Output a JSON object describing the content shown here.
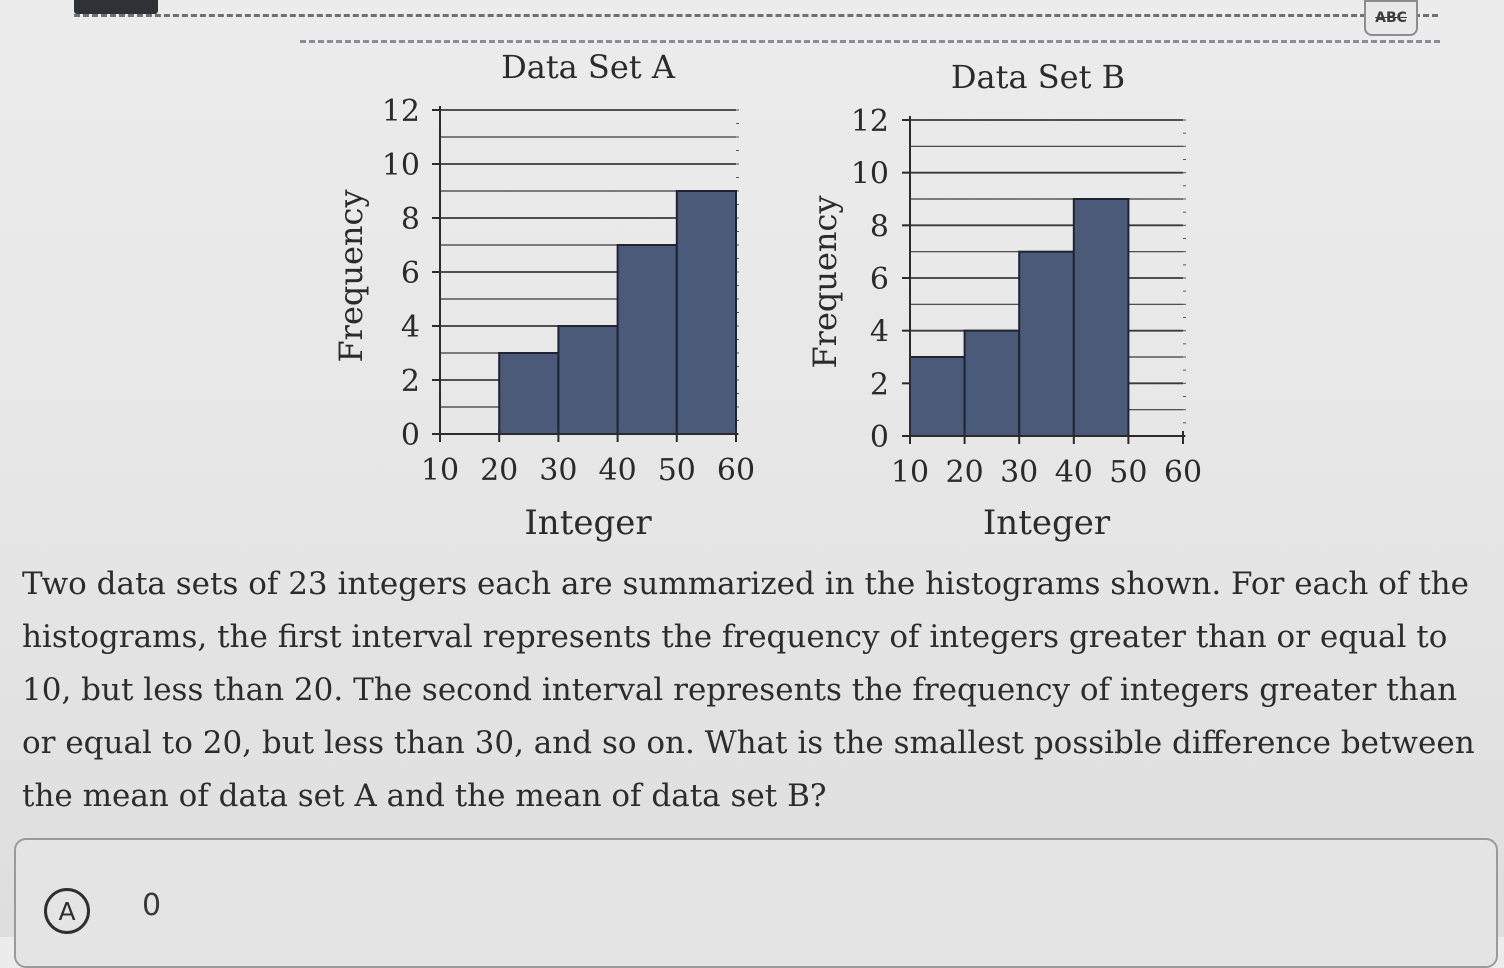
{
  "toolbar": {
    "abc_label": "ABC"
  },
  "chart_data": [
    {
      "type": "bar",
      "title": "Data Set A",
      "xlabel": "Integer",
      "ylabel": "Frequency",
      "x_ticks": [
        "10",
        "20",
        "30",
        "40",
        "50",
        "60"
      ],
      "y_ticks": [
        "0",
        "2",
        "4",
        "6",
        "8",
        "10",
        "12"
      ],
      "ylim": [
        0,
        12
      ],
      "xlim": [
        10,
        60
      ],
      "bins": [
        [
          10,
          20
        ],
        [
          20,
          30
        ],
        [
          30,
          40
        ],
        [
          40,
          50
        ],
        [
          50,
          60
        ]
      ],
      "values": [
        0,
        3,
        4,
        7,
        9
      ],
      "bar_color": "#4a5a78"
    },
    {
      "type": "bar",
      "title": "Data Set B",
      "xlabel": "Integer",
      "ylabel": "Frequency",
      "x_ticks": [
        "10",
        "20",
        "30",
        "40",
        "50",
        "60"
      ],
      "y_ticks": [
        "0",
        "2",
        "4",
        "6",
        "8",
        "10",
        "12"
      ],
      "ylim": [
        0,
        12
      ],
      "xlim": [
        10,
        60
      ],
      "bins": [
        [
          10,
          20
        ],
        [
          20,
          30
        ],
        [
          30,
          40
        ],
        [
          40,
          50
        ],
        [
          50,
          60
        ]
      ],
      "values": [
        3,
        4,
        7,
        9,
        0
      ],
      "bar_color": "#4a5a78"
    }
  ],
  "question": {
    "text": "Two data sets of 23 integers each are summarized in the histograms shown. For each of the histograms, the first interval represents the frequency of integers greater than or equal to 10, but less than 20. The second interval represents the frequency of integers greater than or equal to 20, but less than 30, and so on. What is the smallest possible difference between the mean of data set A and the mean of data set B?"
  },
  "choices": [
    {
      "letter": "A",
      "value": "0"
    }
  ]
}
